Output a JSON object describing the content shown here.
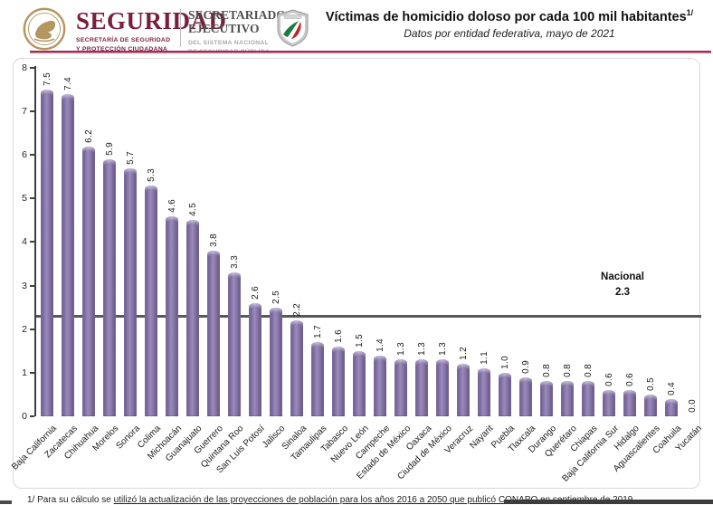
{
  "header": {
    "brand": {
      "name": "SEGURIDAD",
      "tagline_line1": "SECRETARÍA DE SEGURIDAD",
      "tagline_line2": "Y PROTECCIÓN CIUDADANA"
    },
    "secretariat": {
      "line1": "SECRETARIADO",
      "line2": "EJECUTIVO",
      "sub_line1": "DEL SISTEMA NACIONAL",
      "sub_line2": "DE SEGURIDAD PÚBLICA"
    },
    "title": "Víctimas de homicidio doloso por cada 100 mil habitantes",
    "title_superscript": "1/",
    "subtitle": "Datos por entidad federativa, mayo de 2021"
  },
  "chart_data": {
    "type": "bar",
    "title": "Víctimas de homicidio doloso por cada 100 mil habitantes",
    "subtitle": "Datos por entidad federativa, mayo de 2021",
    "categories": [
      "Baja California",
      "Zacatecas",
      "Chihuahua",
      "Morelos",
      "Sonora",
      "Colima",
      "Michoacán",
      "Guanajuato",
      "Guerrero",
      "Quintana Roo",
      "San Luis Potosí",
      "Jalisco",
      "Sinaloa",
      "Tamaulipas",
      "Tabasco",
      "Nuevo León",
      "Campeche",
      "Estado de México",
      "Oaxaca",
      "Ciudad de México",
      "Veracruz",
      "Nayarit",
      "Puebla",
      "Tlaxcala",
      "Durango",
      "Querétaro",
      "Chiapas",
      "Baja California Sur",
      "Hidalgo",
      "Aguascalientes",
      "Coahuila",
      "Yucatán"
    ],
    "values": [
      7.5,
      7.4,
      6.2,
      5.9,
      5.7,
      5.3,
      4.6,
      4.5,
      3.8,
      3.3,
      2.6,
      2.5,
      2.2,
      1.7,
      1.6,
      1.5,
      1.4,
      1.3,
      1.3,
      1.3,
      1.2,
      1.1,
      1.0,
      0.9,
      0.8,
      0.8,
      0.8,
      0.6,
      0.6,
      0.5,
      0.4,
      0.0
    ],
    "value_labels": [
      "7.5",
      "7.4",
      "6.2",
      "5.9",
      "5.7",
      "5.3",
      "4.6",
      "4.5",
      "3.8",
      "3.3",
      "2.6",
      "2.5",
      "2.2",
      "1.7",
      "1.6",
      "1.5",
      "1.4",
      "1.3",
      "1.3",
      "1.3",
      "1.2",
      "1.1",
      "1.0",
      "0.9",
      "0.8",
      "0.8",
      "0.8",
      "0.6",
      "0.6",
      "0.5",
      "0.4",
      "0.0"
    ],
    "xlabel": "",
    "ylabel": "",
    "ylim": [
      0,
      8
    ],
    "yticks": [
      0,
      1,
      2,
      3,
      4,
      5,
      6,
      7,
      8
    ],
    "grid": false,
    "legend": "none",
    "reference_line": {
      "label": "Nacional",
      "value": 2.3,
      "value_label": "2.3",
      "color": "#58595b"
    },
    "bar_color": "#8172a8",
    "bar_edge_color": "#5e4b80"
  },
  "footnote": {
    "prefix": "1/ Para su cálculo se ",
    "linked_text": "utilizó la actualización de las proyecciones de población para los años 2016 a 2050 que publicó CONAPO en septiembre de 2019."
  },
  "colors": {
    "brand_maroon": "#7a1e3c",
    "header_rule": "#8e2244",
    "seal_gold": "#b39660",
    "shield_silver": "#c8c8c8",
    "flag_green": "#1f7a3d",
    "flag_red": "#c22326"
  }
}
